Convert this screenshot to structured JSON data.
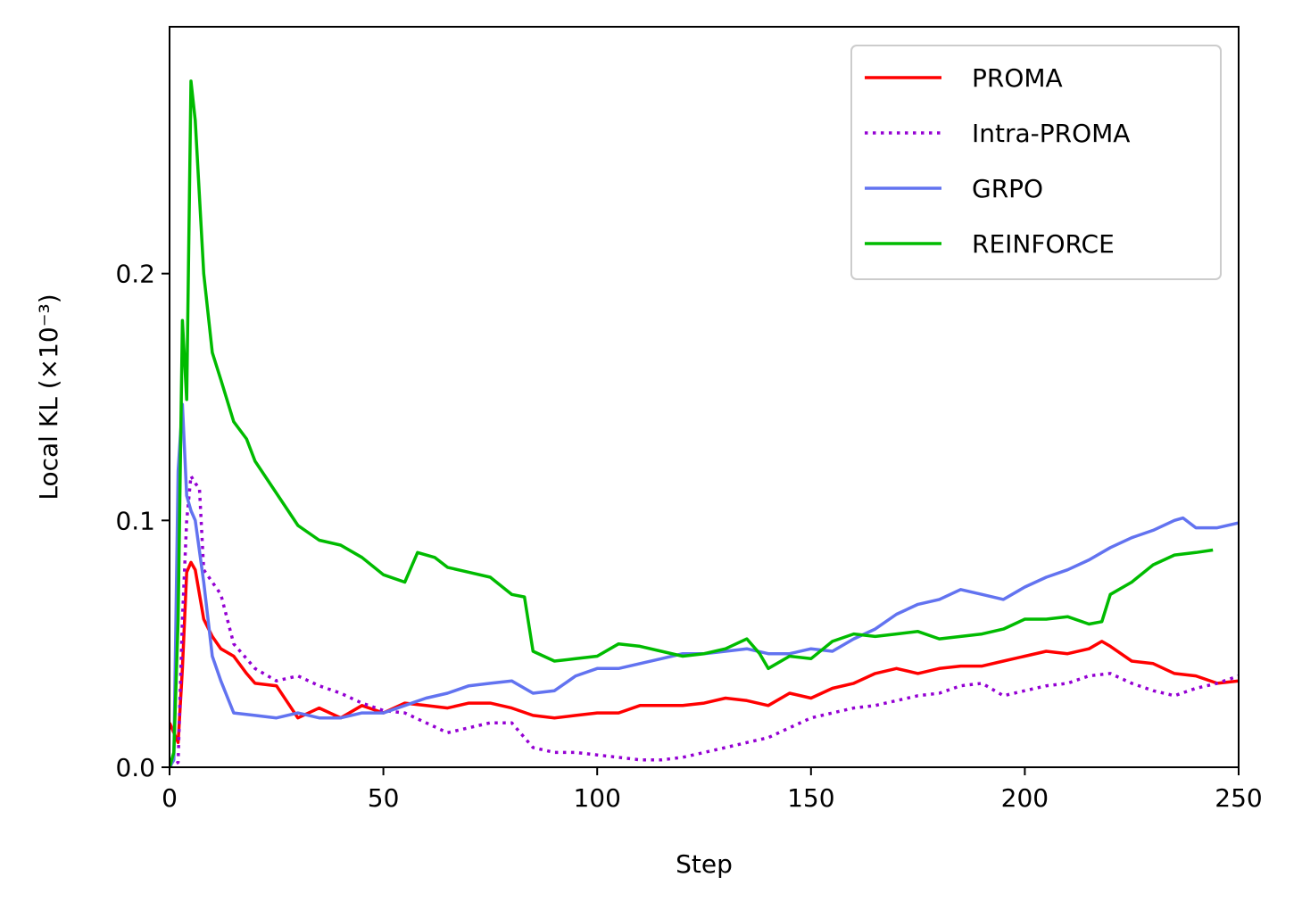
{
  "chart_data": {
    "type": "line",
    "title": "",
    "xlabel": "Step",
    "ylabel": "Local KL (×10⁻³)",
    "xlim": [
      0,
      250
    ],
    "ylim": [
      0,
      0.3
    ],
    "xticks": [
      0,
      50,
      100,
      150,
      200,
      250
    ],
    "xtick_labels": [
      "0",
      "50",
      "100",
      "150",
      "200",
      "250"
    ],
    "yticks": [
      0,
      0.1,
      0.2
    ],
    "ytick_labels": [
      "0.0",
      "0.1",
      "0.2"
    ],
    "grid": false,
    "legend_position": "top-right",
    "series": [
      {
        "name": "PROMA",
        "color": "#ff0000",
        "style": "solid",
        "x": [
          0,
          2,
          3,
          4,
          5,
          6,
          8,
          10,
          12,
          15,
          18,
          20,
          25,
          30,
          35,
          40,
          45,
          50,
          55,
          60,
          65,
          70,
          75,
          80,
          85,
          90,
          95,
          100,
          105,
          110,
          115,
          120,
          125,
          130,
          135,
          140,
          145,
          150,
          155,
          160,
          165,
          170,
          175,
          180,
          185,
          190,
          195,
          200,
          205,
          210,
          215,
          218,
          220,
          225,
          230,
          235,
          240,
          245,
          250
        ],
        "values": [
          0.018,
          0.01,
          0.04,
          0.079,
          0.083,
          0.08,
          0.06,
          0.053,
          0.048,
          0.045,
          0.038,
          0.034,
          0.033,
          0.02,
          0.024,
          0.02,
          0.025,
          0.022,
          0.026,
          0.025,
          0.024,
          0.026,
          0.026,
          0.024,
          0.021,
          0.02,
          0.021,
          0.022,
          0.022,
          0.025,
          0.025,
          0.025,
          0.026,
          0.028,
          0.027,
          0.025,
          0.03,
          0.028,
          0.032,
          0.034,
          0.038,
          0.04,
          0.038,
          0.04,
          0.041,
          0.041,
          0.043,
          0.045,
          0.047,
          0.046,
          0.048,
          0.051,
          0.049,
          0.043,
          0.042,
          0.038,
          0.037,
          0.034,
          0.035
        ]
      },
      {
        "name": "Intra-PROMA",
        "color": "#9400d3",
        "style": "dotted",
        "x": [
          0,
          2,
          3,
          4,
          5,
          6,
          7,
          8,
          10,
          12,
          15,
          20,
          25,
          30,
          35,
          40,
          45,
          50,
          55,
          60,
          65,
          70,
          75,
          80,
          85,
          90,
          95,
          100,
          105,
          110,
          115,
          120,
          125,
          130,
          135,
          140,
          145,
          150,
          155,
          160,
          165,
          170,
          175,
          180,
          185,
          190,
          195,
          200,
          205,
          210,
          215,
          220,
          225,
          230,
          235,
          240,
          245,
          250
        ],
        "values": [
          0,
          0.002,
          0.06,
          0.1,
          0.118,
          0.115,
          0.113,
          0.08,
          0.075,
          0.07,
          0.05,
          0.04,
          0.035,
          0.037,
          0.033,
          0.03,
          0.026,
          0.023,
          0.022,
          0.018,
          0.014,
          0.016,
          0.018,
          0.018,
          0.008,
          0.006,
          0.006,
          0.005,
          0.004,
          0.003,
          0.003,
          0.004,
          0.006,
          0.008,
          0.01,
          0.012,
          0.016,
          0.02,
          0.022,
          0.024,
          0.025,
          0.027,
          0.029,
          0.03,
          0.033,
          0.034,
          0.029,
          0.031,
          0.033,
          0.034,
          0.037,
          0.038,
          0.034,
          0.031,
          0.029,
          0.032,
          0.034,
          0.037
        ]
      },
      {
        "name": "GRPO",
        "color": "#6273f0",
        "style": "solid",
        "x": [
          0,
          1,
          2,
          3,
          4,
          5,
          6,
          8,
          10,
          12,
          15,
          20,
          25,
          30,
          35,
          40,
          45,
          50,
          55,
          60,
          65,
          70,
          75,
          80,
          85,
          90,
          95,
          100,
          105,
          110,
          115,
          120,
          125,
          130,
          135,
          140,
          145,
          150,
          155,
          160,
          165,
          170,
          175,
          180,
          185,
          190,
          195,
          200,
          205,
          210,
          215,
          220,
          225,
          230,
          235,
          237,
          240,
          245,
          250
        ],
        "values": [
          0,
          0.003,
          0.12,
          0.147,
          0.11,
          0.104,
          0.1,
          0.075,
          0.045,
          0.035,
          0.022,
          0.021,
          0.02,
          0.022,
          0.02,
          0.02,
          0.022,
          0.022,
          0.025,
          0.028,
          0.03,
          0.033,
          0.034,
          0.035,
          0.03,
          0.031,
          0.037,
          0.04,
          0.04,
          0.042,
          0.044,
          0.046,
          0.046,
          0.047,
          0.048,
          0.046,
          0.046,
          0.048,
          0.047,
          0.052,
          0.056,
          0.062,
          0.066,
          0.068,
          0.072,
          0.07,
          0.068,
          0.073,
          0.077,
          0.08,
          0.084,
          0.089,
          0.093,
          0.096,
          0.1,
          0.101,
          0.097,
          0.097,
          0.099
        ]
      },
      {
        "name": "REINFORCE",
        "color": "#00bb00",
        "style": "solid",
        "x": [
          0,
          1,
          2,
          3,
          4,
          5,
          6,
          8,
          10,
          12,
          15,
          18,
          20,
          25,
          30,
          35,
          40,
          45,
          50,
          55,
          58,
          62,
          65,
          70,
          75,
          80,
          83,
          85,
          90,
          95,
          100,
          105,
          110,
          115,
          120,
          125,
          130,
          135,
          138,
          140,
          145,
          150,
          155,
          160,
          165,
          170,
          175,
          180,
          185,
          190,
          195,
          200,
          205,
          210,
          215,
          218,
          220,
          225,
          230,
          235,
          240,
          244
        ],
        "values": [
          0,
          0.006,
          0.06,
          0.181,
          0.149,
          0.278,
          0.262,
          0.2,
          0.168,
          0.157,
          0.14,
          0.133,
          0.124,
          0.111,
          0.098,
          0.092,
          0.09,
          0.085,
          0.078,
          0.075,
          0.087,
          0.085,
          0.081,
          0.079,
          0.077,
          0.07,
          0.069,
          0.047,
          0.043,
          0.044,
          0.045,
          0.05,
          0.049,
          0.047,
          0.045,
          0.046,
          0.048,
          0.052,
          0.046,
          0.04,
          0.045,
          0.044,
          0.051,
          0.054,
          0.053,
          0.054,
          0.055,
          0.052,
          0.053,
          0.054,
          0.056,
          0.06,
          0.06,
          0.061,
          0.058,
          0.059,
          0.07,
          0.075,
          0.082,
          0.086,
          0.087,
          0.088
        ]
      }
    ]
  }
}
